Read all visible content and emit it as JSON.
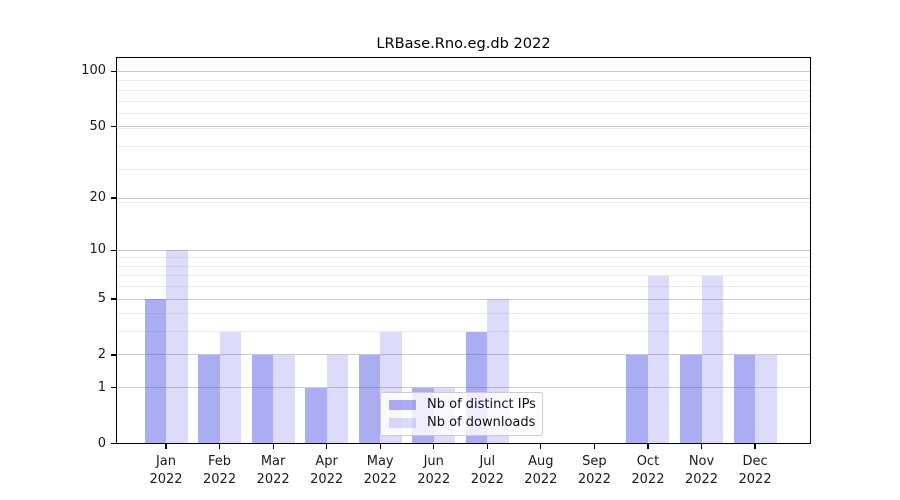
{
  "figure": {
    "title": "LRBase.Rno.eg.db 2022"
  },
  "chart_data": {
    "type": "bar",
    "title": "LRBase.Rno.eg.db 2022",
    "x_months": [
      "Jan",
      "Feb",
      "Mar",
      "Apr",
      "May",
      "Jun",
      "Jul",
      "Aug",
      "Sep",
      "Oct",
      "Nov",
      "Dec"
    ],
    "x_year": "2022",
    "series": [
      {
        "name": "Nb of distinct IPs",
        "color": "rgba(90,90,230,0.50)",
        "values": [
          5,
          2,
          2,
          1,
          2,
          1,
          3,
          0,
          0,
          2,
          2,
          2
        ]
      },
      {
        "name": "Nb of downloads",
        "color": "rgba(90,90,230,0.21)",
        "values": [
          10,
          3,
          2,
          2,
          3,
          1,
          5,
          0,
          0,
          7,
          7,
          2
        ]
      }
    ],
    "yscale": "log1p",
    "ylim": [
      0,
      120
    ],
    "y_tick_values": [
      0,
      1,
      2,
      5,
      10,
      20,
      50,
      100
    ],
    "y_tick_labels": [
      "0",
      "1",
      "2",
      "5",
      "10",
      "20",
      "50",
      "100"
    ],
    "y_minor_gridline_values": [
      3,
      4,
      6,
      7,
      8,
      9,
      19,
      29,
      39,
      49,
      59,
      69,
      79,
      89
    ],
    "grid": true,
    "legend_position": "lower center",
    "colors": {
      "major_grid": "#c9c9c9",
      "minor_grid": "#ececec",
      "spine": "#000000",
      "tick_text": "#1a1a1a"
    }
  }
}
